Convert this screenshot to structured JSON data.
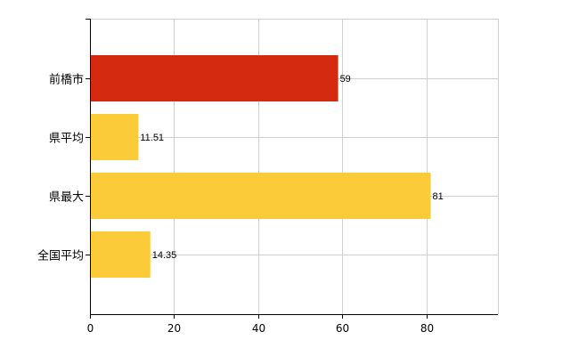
{
  "chart_data": {
    "type": "bar",
    "orientation": "horizontal",
    "title": "",
    "xlabel": "",
    "ylabel": "",
    "categories": [
      "前橋市",
      "県平均",
      "県最大",
      "全国平均"
    ],
    "values": [
      59,
      11.51,
      81,
      14.35
    ],
    "value_labels": [
      "59",
      "11.51",
      "81",
      "14.35"
    ],
    "colors": [
      "#d42a10",
      "#fccb3a",
      "#fccb3a",
      "#fccb3a"
    ],
    "xlim": [
      0,
      97
    ],
    "x_ticks": [
      0,
      20,
      40,
      60,
      80
    ],
    "grid": true,
    "legend": "none"
  }
}
